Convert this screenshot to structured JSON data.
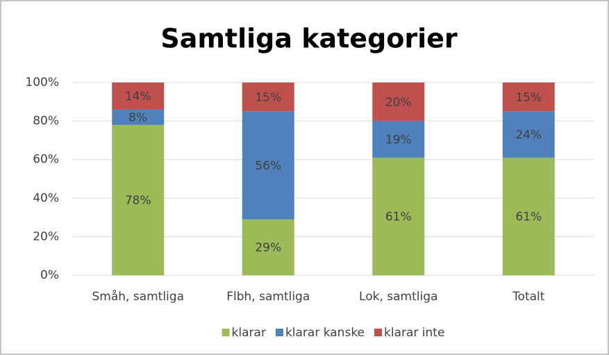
{
  "chart_data": {
    "type": "stacked_bar",
    "title": "Samtliga kategorier",
    "categories": [
      "Småh, samtliga",
      "Flbh, samtliga",
      "Lok, samtliga",
      "Totalt"
    ],
    "series": [
      {
        "name": "klarar",
        "color": "#9bbb59",
        "values": [
          78,
          29,
          61,
          61
        ],
        "value_labels": [
          "78%",
          "29%",
          "61%",
          "61%"
        ]
      },
      {
        "name": "klarar kanske",
        "color": "#4f81bd",
        "values": [
          8,
          56,
          19,
          24
        ],
        "value_labels": [
          "8%",
          "56%",
          "19%",
          "24%"
        ]
      },
      {
        "name": "klarar inte",
        "color": "#c0504d",
        "values": [
          14,
          15,
          20,
          15
        ],
        "value_labels": [
          "14%",
          "15%",
          "20%",
          "15%"
        ]
      }
    ],
    "ylim": [
      0,
      100
    ],
    "yticks": [
      {
        "value": 0,
        "label": "0%"
      },
      {
        "value": 20,
        "label": "20%"
      },
      {
        "value": 40,
        "label": "40%"
      },
      {
        "value": 60,
        "label": "60%"
      },
      {
        "value": 80,
        "label": "80%"
      },
      {
        "value": 100,
        "label": "100%"
      }
    ],
    "grid": true,
    "legend": "bottom"
  }
}
